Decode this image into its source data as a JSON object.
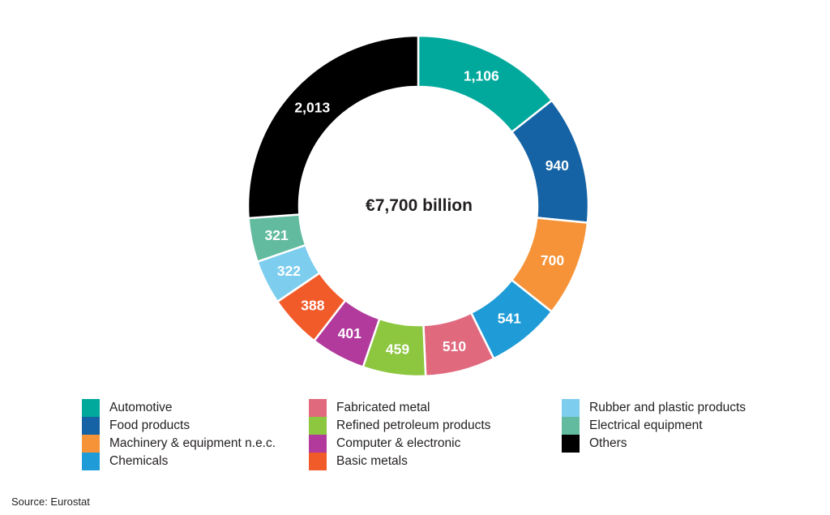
{
  "chart_data": {
    "type": "pie",
    "subtype": "donut",
    "direction": "clockwise",
    "start_angle_deg": 0,
    "center_label": "€7,700 billion",
    "total": 7701,
    "segments": [
      {
        "name": "Automotive",
        "value": 1106,
        "label": "1,106",
        "color": "#00a99c"
      },
      {
        "name": "Food products",
        "value": 940,
        "label": "940",
        "color": "#1563a5"
      },
      {
        "name": "Machinery & equipment n.e.c.",
        "value": 700,
        "label": "700",
        "color": "#f69338"
      },
      {
        "name": "Chemicals",
        "value": 541,
        "label": "541",
        "color": "#1f9cd7"
      },
      {
        "name": "Fabricated metal",
        "value": 510,
        "label": "510",
        "color": "#e0697e"
      },
      {
        "name": "Refined petroleum products",
        "value": 459,
        "label": "459",
        "color": "#8dc63f"
      },
      {
        "name": "Computer & electronic",
        "value": 401,
        "label": "401",
        "color": "#b13a9c"
      },
      {
        "name": "Basic metals",
        "value": 388,
        "label": "388",
        "color": "#f15b2a"
      },
      {
        "name": "Rubber and plastic products",
        "value": 322,
        "label": "322",
        "color": "#7ccdee"
      },
      {
        "name": "Electrical equipment",
        "value": 321,
        "label": "321",
        "color": "#62bb9e"
      },
      {
        "name": "Others",
        "value": 2013,
        "label": "2,013",
        "color": "#000000"
      }
    ],
    "legend": {
      "position": "bottom",
      "columns": [
        [
          "Automotive",
          "Food products",
          "Machinery & equipment n.e.c.",
          "Chemicals"
        ],
        [
          "Fabricated metal",
          "Refined petroleum products",
          "Computer & electronic",
          "Basic metals"
        ],
        [
          "Rubber and plastic products",
          "Electrical equipment",
          "Others"
        ]
      ]
    }
  },
  "source": "Source: Eurostat"
}
